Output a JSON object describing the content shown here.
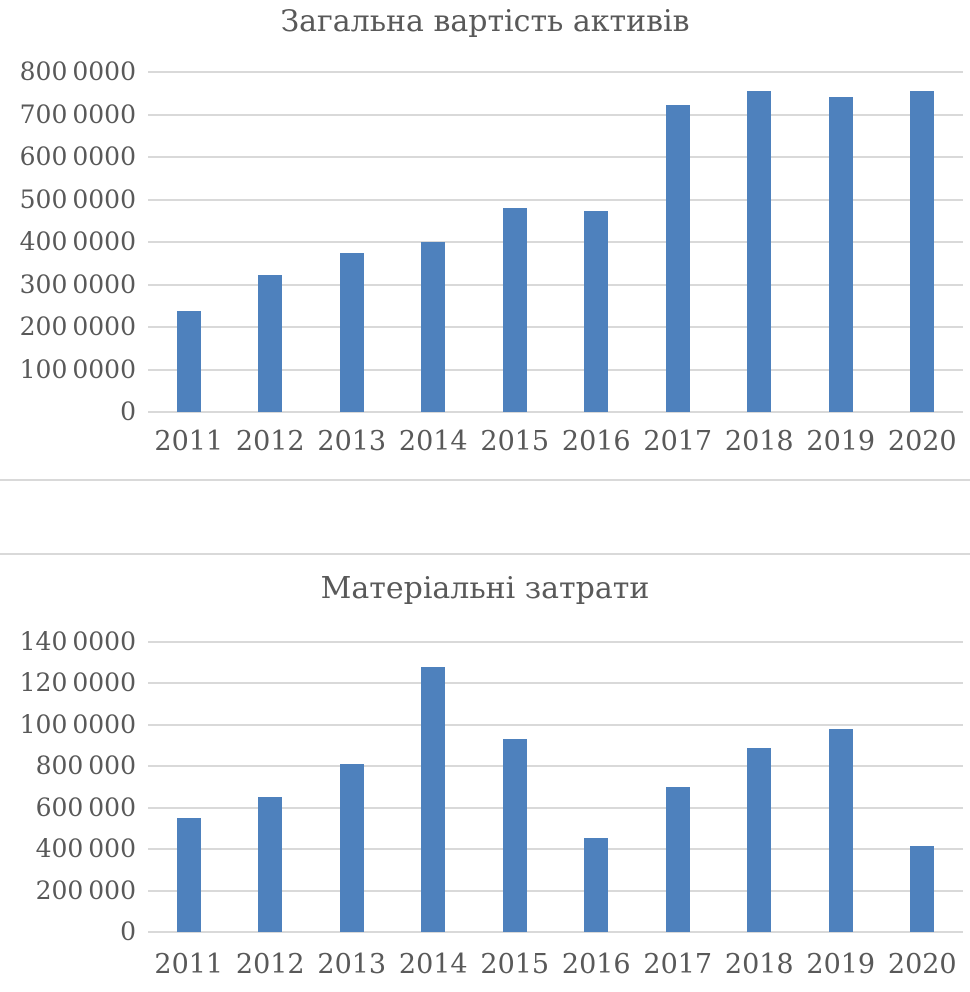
{
  "styles": {
    "bar_color": "#4E81BD",
    "gridline_color": "#D9D9D9",
    "text_color": "#595959",
    "separator_color": "#D9D9D9",
    "background": "#FFFFFF"
  },
  "chart_data": [
    {
      "type": "bar",
      "title": "Загальна вартість активів",
      "categories": [
        "2011",
        "2012",
        "2013",
        "2014",
        "2015",
        "2016",
        "2017",
        "2018",
        "2019",
        "2020"
      ],
      "values": [
        2380000,
        3220000,
        3730000,
        4010000,
        4810000,
        4740000,
        7220000,
        7550000,
        7420000,
        7560000
      ],
      "xlabel": "",
      "ylabel": "",
      "ylim": [
        0,
        8000000
      ],
      "ytick_step": 1000000,
      "yticks": [
        {
          "value": 0,
          "label": "0"
        },
        {
          "value": 1000000,
          "label": "100 0000"
        },
        {
          "value": 2000000,
          "label": "200 0000"
        },
        {
          "value": 3000000,
          "label": "300 0000"
        },
        {
          "value": 4000000,
          "label": "400 0000"
        },
        {
          "value": 5000000,
          "label": "500 0000"
        },
        {
          "value": 6000000,
          "label": "600 0000"
        },
        {
          "value": 7000000,
          "label": "700 0000"
        },
        {
          "value": 8000000,
          "label": "800 0000"
        }
      ],
      "grid": true,
      "legend_position": "none"
    },
    {
      "type": "bar",
      "title": "Матеріальні затрати",
      "categories": [
        "2011",
        "2012",
        "2013",
        "2014",
        "2015",
        "2016",
        "2017",
        "2018",
        "2019",
        "2020"
      ],
      "values": [
        550000,
        650000,
        810000,
        1280000,
        930000,
        455000,
        700000,
        890000,
        980000,
        415000
      ],
      "xlabel": "",
      "ylabel": "",
      "ylim": [
        0,
        1400000
      ],
      "ytick_step": 200000,
      "yticks": [
        {
          "value": 0,
          "label": "0"
        },
        {
          "value": 200000,
          "label": "200 000"
        },
        {
          "value": 400000,
          "label": "400 000"
        },
        {
          "value": 600000,
          "label": "600 000"
        },
        {
          "value": 800000,
          "label": "800 000"
        },
        {
          "value": 1000000,
          "label": "100 0000"
        },
        {
          "value": 1200000,
          "label": "120 0000"
        },
        {
          "value": 1400000,
          "label": "140 0000"
        }
      ],
      "grid": true,
      "legend_position": "none"
    }
  ]
}
